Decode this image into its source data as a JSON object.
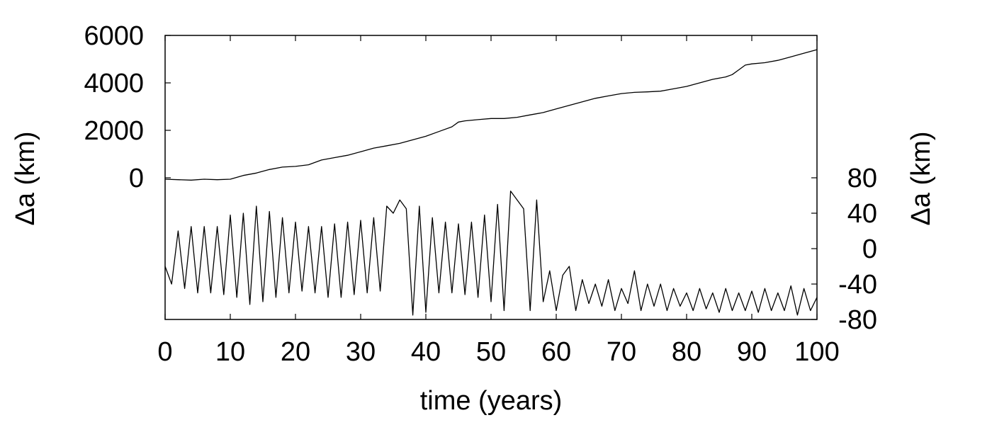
{
  "chart_data": {
    "type": "line",
    "xlabel": "time (years)",
    "ylabel_left": "Δa (km)",
    "ylabel_right": "Δa (km)",
    "xlim": [
      0,
      100
    ],
    "xticks": [
      "0",
      "10",
      "20",
      "30",
      "40",
      "50",
      "60",
      "70",
      "80",
      "90",
      "100"
    ],
    "ylim_left": [
      -6000,
      6000
    ],
    "yticks_left": [
      "6000",
      "4000",
      "2000",
      "0"
    ],
    "ylim_right": [
      -80,
      80
    ],
    "yticks_right": [
      "80",
      "40",
      "0",
      "-40",
      "-80"
    ],
    "grid": false,
    "series": [
      {
        "axis": "left",
        "x": [
          0,
          2,
          4,
          6,
          8,
          10,
          12,
          14,
          16,
          18,
          20,
          22,
          24,
          26,
          28,
          30,
          32,
          34,
          36,
          38,
          40,
          42,
          44,
          45,
          46,
          48,
          50,
          52,
          54,
          56,
          58,
          60,
          62,
          64,
          66,
          68,
          70,
          72,
          74,
          76,
          78,
          80,
          82,
          84,
          86,
          87,
          88,
          89,
          90,
          92,
          94,
          96,
          98,
          100
        ],
        "values": [
          -60,
          -80,
          -100,
          -60,
          -80,
          -60,
          100,
          200,
          350,
          450,
          480,
          550,
          750,
          850,
          950,
          1100,
          1250,
          1350,
          1450,
          1600,
          1750,
          1950,
          2150,
          2350,
          2400,
          2450,
          2500,
          2500,
          2550,
          2650,
          2750,
          2900,
          3050,
          3200,
          3350,
          3450,
          3550,
          3600,
          3620,
          3650,
          3750,
          3850,
          4000,
          4150,
          4250,
          4350,
          4550,
          4750,
          4800,
          4850,
          4950,
          5100,
          5250,
          5400
        ]
      },
      {
        "axis": "right",
        "x": [
          0,
          1,
          2,
          3,
          4,
          5,
          6,
          7,
          8,
          9,
          10,
          11,
          12,
          13,
          14,
          15,
          16,
          17,
          18,
          19,
          20,
          21,
          22,
          23,
          24,
          25,
          26,
          27,
          28,
          29,
          30,
          31,
          32,
          33,
          34,
          35,
          36,
          37,
          38,
          39,
          40,
          41,
          42,
          43,
          44,
          45,
          46,
          47,
          48,
          49,
          50,
          51,
          52,
          53,
          54,
          55,
          56,
          57,
          58,
          59,
          60,
          61,
          62,
          63,
          64,
          65,
          66,
          67,
          68,
          69,
          70,
          71,
          72,
          73,
          74,
          75,
          76,
          77,
          78,
          79,
          80,
          81,
          82,
          83,
          84,
          85,
          86,
          87,
          88,
          89,
          90,
          91,
          92,
          93,
          94,
          95,
          96,
          97,
          98,
          99,
          100
        ],
        "values": [
          -20,
          -40,
          20,
          -45,
          25,
          -50,
          25,
          -50,
          25,
          -52,
          38,
          -55,
          40,
          -63,
          48,
          -60,
          42,
          -55,
          35,
          -50,
          30,
          -48,
          25,
          -50,
          25,
          -55,
          28,
          -55,
          30,
          -52,
          32,
          -50,
          35,
          -48,
          48,
          40,
          55,
          45,
          -75,
          48,
          -72,
          35,
          -50,
          30,
          -50,
          28,
          -52,
          30,
          -55,
          38,
          -60,
          50,
          -70,
          65,
          55,
          45,
          -70,
          55,
          -60,
          -25,
          -70,
          -30,
          -20,
          -70,
          -35,
          -62,
          -40,
          -65,
          -35,
          -70,
          -45,
          -62,
          -25,
          -70,
          -40,
          -65,
          -40,
          -70,
          -45,
          -65,
          -50,
          -70,
          -45,
          -68,
          -50,
          -72,
          -45,
          -70,
          -50,
          -70,
          -48,
          -72,
          -45,
          -70,
          -50,
          -70,
          -42,
          -75,
          -45,
          -70,
          -55
        ]
      }
    ]
  }
}
